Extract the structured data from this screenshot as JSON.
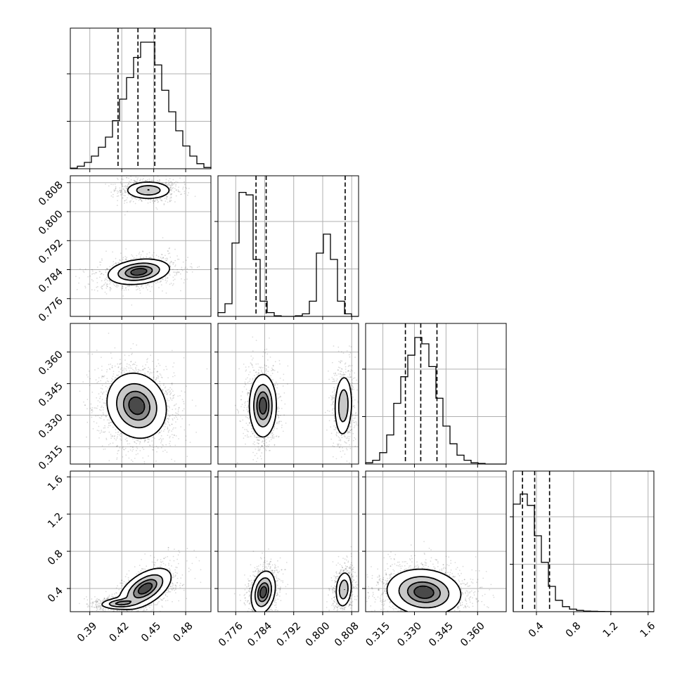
{
  "chart_data": {
    "type": "corner",
    "n_params": 4,
    "labels": [
      "",
      "",
      "",
      ""
    ],
    "params": [
      {
        "range": [
          0.3717,
          0.5037
        ],
        "ticks": [
          "0.39",
          "0.42",
          "0.45",
          "0.48"
        ],
        "quantiles": [
          0.4165,
          0.4352,
          0.451
        ],
        "grid": true
      },
      {
        "range": [
          0.7711,
          0.8099
        ],
        "ticks": [
          "0.776",
          "0.784",
          "0.792",
          "0.800",
          "0.808"
        ],
        "quantiles": [
          0.7816,
          0.7844,
          0.8062
        ],
        "grid": true
      },
      {
        "range": [
          0.3068,
          0.3736
        ],
        "ticks": [
          "0.315",
          "0.330",
          "0.345",
          "0.360"
        ],
        "quantiles": [
          0.3257,
          0.333,
          0.3407
        ],
        "grid": true
      },
      {
        "range": [
          0.1508,
          1.6622
        ],
        "ticks": [
          "0.4",
          "0.8",
          "1.2",
          "1.6"
        ],
        "quantiles": [
          0.25,
          0.381,
          0.541
        ],
        "grid": true
      }
    ],
    "histograms": [
      {
        "param": 0,
        "bins": 20,
        "counts": [
          0.005,
          0.02,
          0.05,
          0.1,
          0.17,
          0.25,
          0.38,
          0.55,
          0.72,
          0.88,
          1.0,
          1.0,
          0.82,
          0.62,
          0.45,
          0.3,
          0.18,
          0.1,
          0.04,
          0.01
        ]
      },
      {
        "param": 1,
        "bins": 20,
        "counts": [
          0.03,
          0.1,
          0.58,
          0.98,
          0.96,
          0.45,
          0.12,
          0.03,
          0.005,
          0.0,
          0.0,
          0.005,
          0.02,
          0.12,
          0.5,
          0.65,
          0.45,
          0.12,
          0.02,
          0.0
        ]
      },
      {
        "param": 2,
        "bins": 20,
        "counts": [
          0.01,
          0.03,
          0.09,
          0.23,
          0.48,
          0.69,
          0.86,
          1.0,
          0.95,
          0.77,
          0.52,
          0.3,
          0.16,
          0.07,
          0.03,
          0.01,
          0.005,
          0.0,
          0.0,
          0.0
        ]
      },
      {
        "param": 3,
        "bins": 20,
        "counts": [
          0.85,
          0.93,
          0.84,
          0.6,
          0.39,
          0.2,
          0.09,
          0.04,
          0.02,
          0.01,
          0.005,
          0.003,
          0.002,
          0.001,
          0.0,
          0.0,
          0.0,
          0.0,
          0.0,
          0.0
        ]
      }
    ],
    "joint_density": [
      {
        "x": 0,
        "y": 1,
        "modes": [
          {
            "cx": 0.436,
            "cy": 0.7834,
            "sx": 0.014,
            "sy": 0.0017,
            "rho": 0.25,
            "w": 0.6
          },
          {
            "cx": 0.445,
            "cy": 0.8059,
            "sx": 0.0105,
            "sy": 0.0012,
            "rho": 0.0,
            "w": 0.4
          }
        ]
      },
      {
        "x": 0,
        "y": 2,
        "modes": [
          {
            "cx": 0.434,
            "cy": 0.3345,
            "sx": 0.0135,
            "sy": 0.0075,
            "rho": -0.12,
            "w": 1.0
          }
        ]
      },
      {
        "x": 1,
        "y": 2,
        "modes": [
          {
            "cx": 0.7835,
            "cy": 0.3345,
            "sx": 0.0018,
            "sy": 0.0072,
            "rho": 0.0,
            "w": 0.6
          },
          {
            "cx": 0.8057,
            "cy": 0.3345,
            "sx": 0.0012,
            "sy": 0.0072,
            "rho": 0.1,
            "w": 0.4
          }
        ]
      },
      {
        "x": 0,
        "y": 3,
        "modes": [
          {
            "cx": 0.442,
            "cy": 0.4,
            "sx": 0.0118,
            "sy": 0.105,
            "rho": 0.55,
            "w": 0.6
          },
          {
            "cx": 0.418,
            "cy": 0.24,
            "sx": 0.009,
            "sy": 0.028,
            "rho": 0.2,
            "w": 0.4
          }
        ]
      },
      {
        "x": 1,
        "y": 3,
        "modes": [
          {
            "cx": 0.7836,
            "cy": 0.36,
            "sx": 0.0016,
            "sy": 0.11,
            "rho": 0.25,
            "w": 0.6
          },
          {
            "cx": 0.8058,
            "cy": 0.39,
            "sx": 0.0011,
            "sy": 0.095,
            "rho": 0.15,
            "w": 0.4
          }
        ]
      },
      {
        "x": 2,
        "y": 3,
        "modes": [
          {
            "cx": 0.3345,
            "cy": 0.36,
            "sx": 0.0085,
            "sy": 0.12,
            "rho": -0.1,
            "w": 1.0
          }
        ]
      }
    ],
    "contour_levels": [
      0.12,
      0.38,
      0.66,
      0.86
    ],
    "show_datapoints": true,
    "quantile_line_style": "dashed"
  }
}
